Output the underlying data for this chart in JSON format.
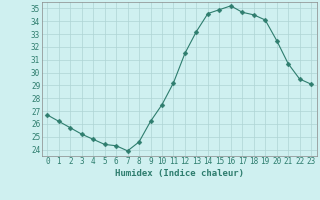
{
  "x": [
    0,
    1,
    2,
    3,
    4,
    5,
    6,
    7,
    8,
    9,
    10,
    11,
    12,
    13,
    14,
    15,
    16,
    17,
    18,
    19,
    20,
    21,
    22,
    23
  ],
  "y": [
    26.7,
    26.2,
    25.7,
    25.2,
    24.8,
    24.4,
    24.3,
    23.9,
    24.6,
    26.2,
    27.5,
    29.2,
    31.5,
    33.2,
    34.6,
    34.9,
    35.2,
    34.7,
    34.5,
    34.1,
    32.5,
    30.7,
    29.5,
    29.1
  ],
  "line_color": "#2e7d6e",
  "marker": "D",
  "marker_size": 2.5,
  "bg_color": "#cff0f0",
  "grid_color": "#aed4d4",
  "xlabel": "Humidex (Indice chaleur)",
  "xlim": [
    -0.5,
    23.5
  ],
  "ylim": [
    23.5,
    35.5
  ],
  "yticks": [
    24,
    25,
    26,
    27,
    28,
    29,
    30,
    31,
    32,
    33,
    34,
    35
  ],
  "xticks": [
    0,
    1,
    2,
    3,
    4,
    5,
    6,
    7,
    8,
    9,
    10,
    11,
    12,
    13,
    14,
    15,
    16,
    17,
    18,
    19,
    20,
    21,
    22,
    23
  ],
  "xlabel_fontsize": 6.5,
  "tick_fontsize": 5.5
}
